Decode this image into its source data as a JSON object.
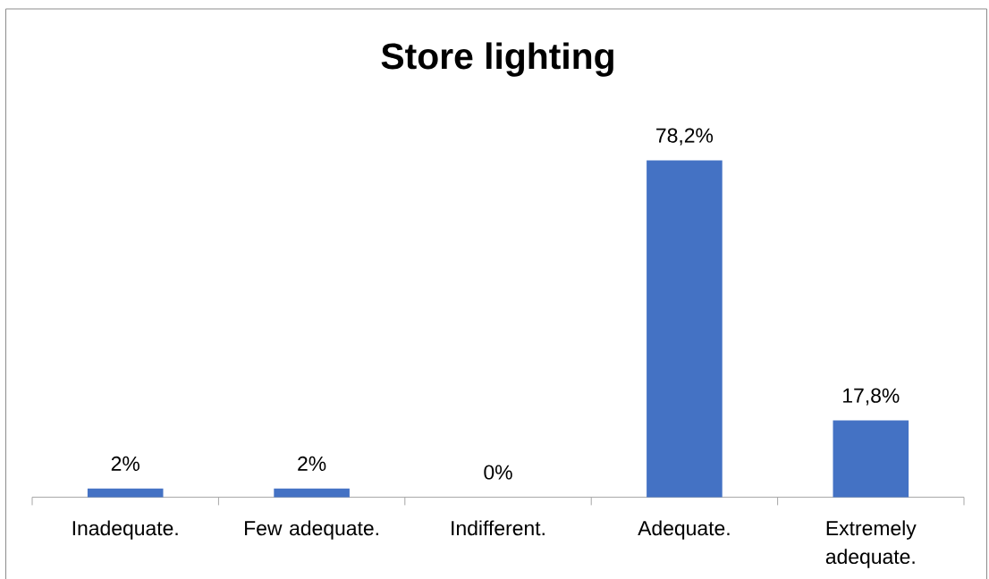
{
  "chart_data": {
    "type": "bar",
    "title": "Store lighting",
    "categories": [
      "Inadequate.",
      "Few adequate.",
      "Indifferent.",
      "Adequate.",
      "Extremely adequate."
    ],
    "values": [
      2,
      2,
      0,
      78.2,
      17.8
    ],
    "value_labels": [
      "2%",
      "2%",
      "0%",
      "78,2%",
      "17,8%"
    ],
    "color": "#4472c4"
  }
}
